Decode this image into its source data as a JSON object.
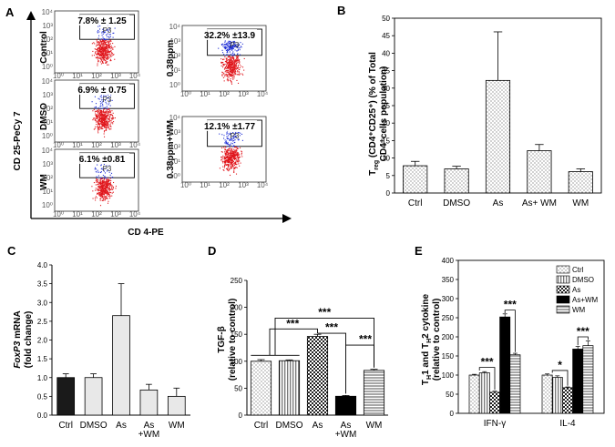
{
  "panels": {
    "A": {
      "label": "A",
      "xlabel": "CD 4-PE",
      "ylabel": "CD 25-PeCy 7",
      "plots": [
        {
          "name": "Control",
          "pct": "7.8% ± 1.25"
        },
        {
          "name": "DMSO",
          "pct": "6.9% ± 0.75"
        },
        {
          "name": "WM",
          "pct": "6.1% ±0.81"
        },
        {
          "name": "0.38ppm",
          "pct": "32.2% ±13.9"
        },
        {
          "name": "0.38ppm+WM",
          "pct": "12.1% ±1.77"
        }
      ],
      "gate_label": "P3",
      "axis_ticks": [
        "10⁰",
        "10¹",
        "10²",
        "10³",
        "10⁴"
      ]
    },
    "B": {
      "label": "B"
    },
    "C": {
      "label": "C"
    },
    "D": {
      "label": "D"
    },
    "E": {
      "label": "E"
    }
  },
  "chart_data": [
    {
      "id": "B",
      "type": "bar",
      "title": "",
      "ylabel": "Treg (CD4+CD25+) (% of Total CD4+cells population)",
      "ylabel_main": "T",
      "ylabel_sub": "reg",
      "ylabel_rest": " (CD4⁺CD25⁺) (% of Total",
      "ylabel_line2": "CD4⁺cells population)",
      "categories": [
        "Ctrl",
        "DMSO",
        "As",
        "As+ WM",
        "WM"
      ],
      "values": [
        7.8,
        6.9,
        32.2,
        12.1,
        6.1
      ],
      "errors": [
        1.25,
        0.75,
        13.9,
        1.77,
        0.81
      ],
      "ylim": [
        0,
        50
      ],
      "yticks": [
        0,
        5,
        10,
        15,
        20,
        25,
        30,
        35,
        40,
        45,
        50
      ],
      "ytick_labels": [
        "0",
        "5",
        "10",
        "15",
        "20",
        "25",
        "30",
        "35",
        "40",
        "45",
        "50"
      ]
    },
    {
      "id": "C",
      "type": "bar",
      "ylabel": "FoxP3 mRNA (fold change)",
      "ylabel_italic": "FoxP3",
      "ylabel_rest": " mRNA",
      "ylabel_line2": "(fold change)",
      "categories": [
        "Ctrl",
        "DMSO",
        "As",
        "As+WM",
        "WM"
      ],
      "category_lines": [
        [
          "Ctrl"
        ],
        [
          "DMSO"
        ],
        [
          "As"
        ],
        [
          "As",
          "+WM"
        ],
        [
          "WM"
        ]
      ],
      "values": [
        1.0,
        1.0,
        2.65,
        0.67,
        0.5
      ],
      "errors": [
        0.1,
        0.1,
        0.85,
        0.15,
        0.22
      ],
      "colors": [
        "#1a1a1a",
        "#e8e8e8",
        "#e8e8e8",
        "#e8e8e8",
        "#e8e8e8"
      ],
      "ylim": [
        0,
        4.0
      ],
      "ytick_labels": [
        "0.0",
        "0.5",
        "1.0",
        "1.5",
        "2.0",
        "2.5",
        "3.0",
        "3.5",
        "4.0"
      ]
    },
    {
      "id": "D",
      "type": "bar",
      "ylabel": "TGF-β (relative to control)",
      "ylabel_line1": "TGF-β",
      "ylabel_line2": "(relative to control)",
      "categories": [
        "Ctrl",
        "DMSO",
        "As",
        "As+WM",
        "WM"
      ],
      "category_lines": [
        [
          "Ctrl"
        ],
        [
          "DMSO"
        ],
        [
          "As"
        ],
        [
          "As",
          "+WM"
        ],
        [
          "WM"
        ]
      ],
      "values": [
        100,
        101,
        146,
        35,
        83
      ],
      "errors": [
        3,
        1.5,
        4,
        1.5,
        2
      ],
      "ylim": [
        0,
        250
      ],
      "yticks": [
        0,
        50,
        100,
        150,
        200,
        250
      ],
      "ytick_labels": [
        "0",
        "50",
        "100",
        "150",
        "200",
        "250"
      ],
      "significance": "***"
    },
    {
      "id": "E",
      "type": "bar",
      "ylabel": "TH1 and TH2 cytokine (relative to control)",
      "groups": [
        "IFN-γ",
        "IL-4"
      ],
      "series": [
        {
          "name": "Ctrl",
          "values": [
            100,
            100
          ],
          "errors": [
            2,
            3
          ]
        },
        {
          "name": "DMSO",
          "values": [
            106,
            94
          ],
          "errors": [
            3,
            4
          ]
        },
        {
          "name": "As",
          "values": [
            55,
            67
          ],
          "errors": [
            3,
            2
          ]
        },
        {
          "name": "As+WM",
          "values": [
            252,
            168
          ],
          "errors": [
            8,
            7
          ]
        },
        {
          "name": "WM",
          "values": [
            153,
            177
          ],
          "errors": [
            4,
            12
          ]
        }
      ],
      "ylim": [
        0,
        400
      ],
      "yticks": [
        0,
        50,
        100,
        150,
        200,
        250,
        300,
        350,
        400
      ],
      "ytick_labels": [
        "0",
        "50",
        "100",
        "150",
        "200",
        "250",
        "300",
        "350",
        "400"
      ],
      "significance": [
        "***",
        "***",
        "*",
        "***"
      ]
    }
  ]
}
